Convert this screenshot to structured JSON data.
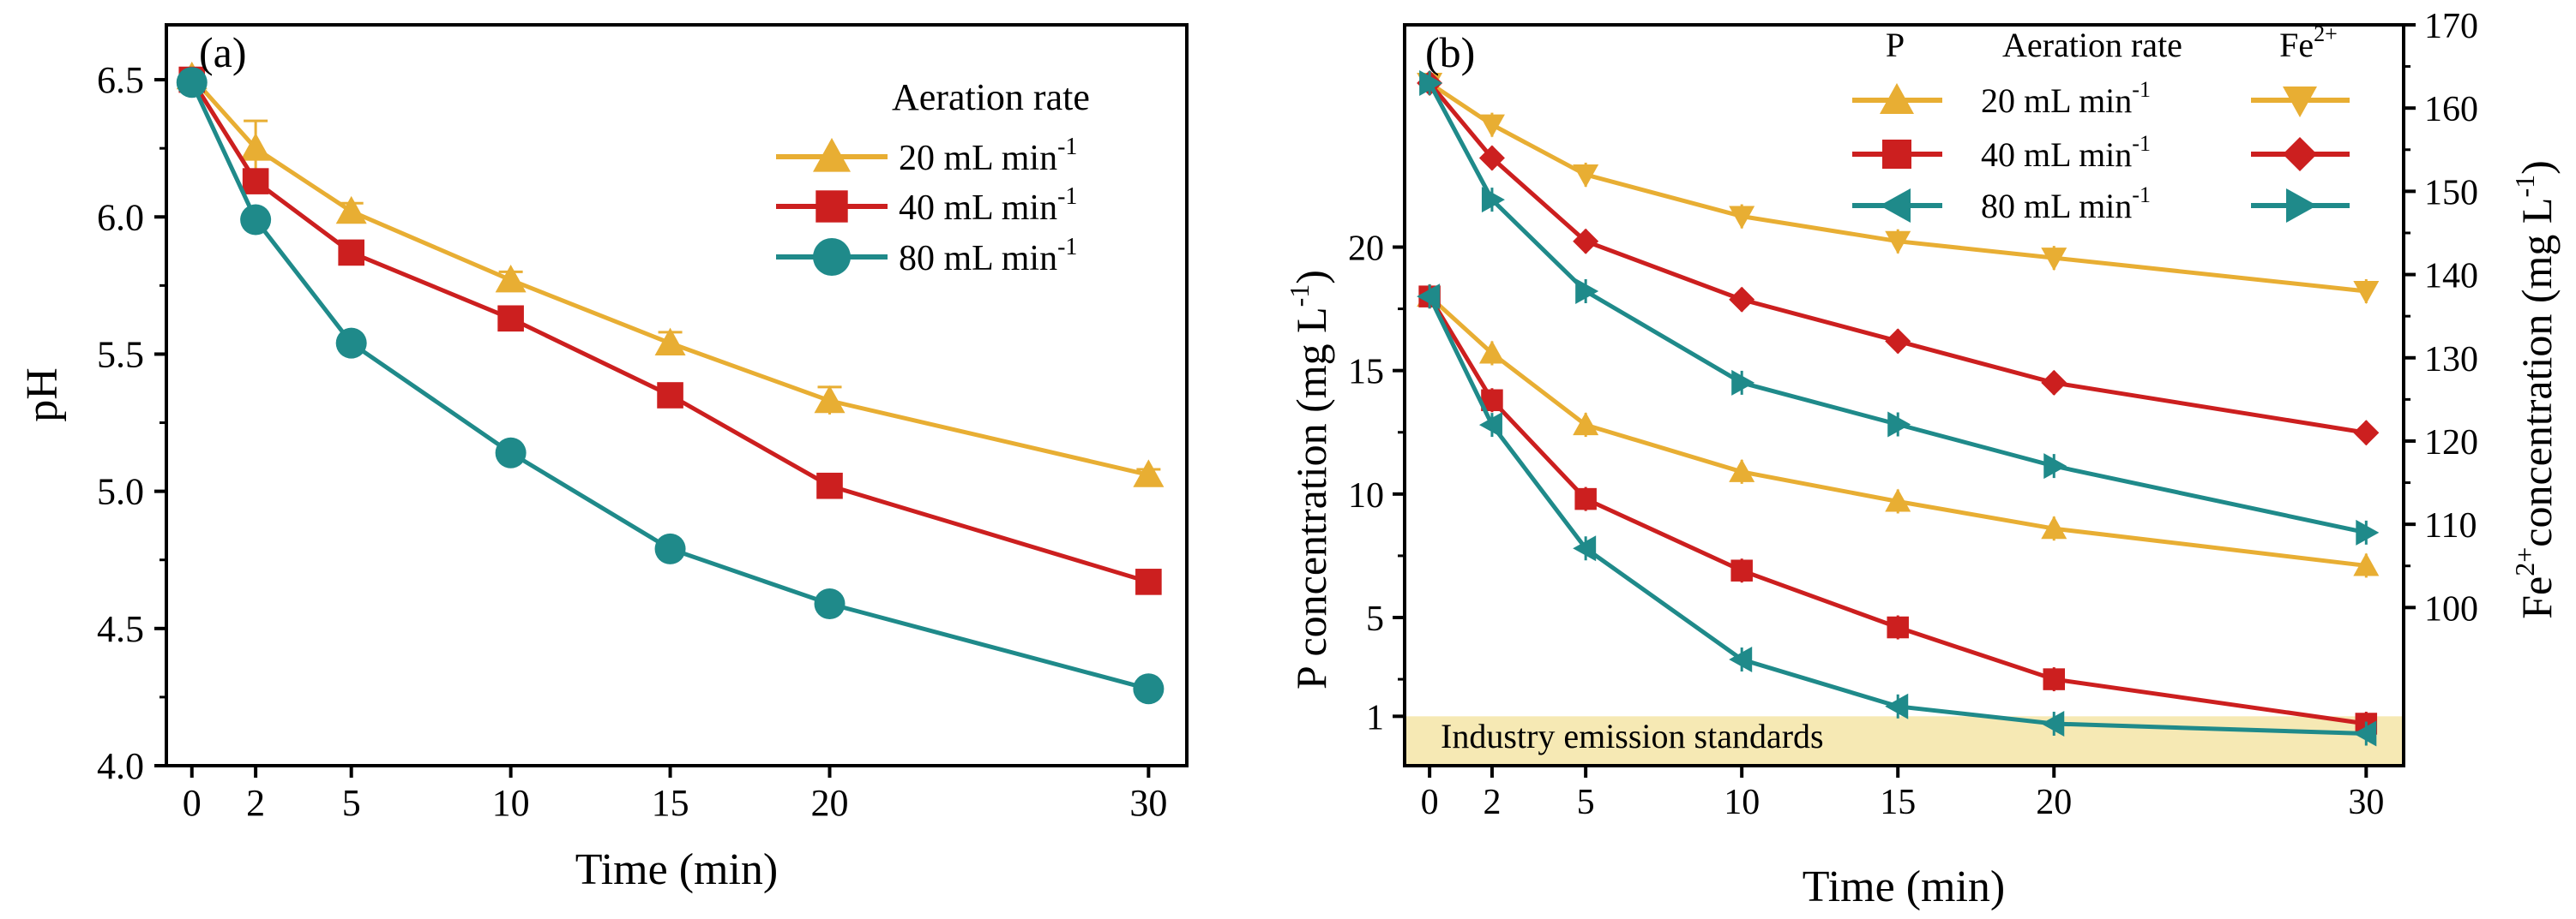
{
  "colors": {
    "yellow": "#E8AE33",
    "red": "#CC1F1F",
    "teal": "#1F8A8A",
    "band": "#F6E9B4",
    "axis": "#000000"
  },
  "chart_data": [
    {
      "panel_label": "(a)",
      "type": "line",
      "xlabel": "Time (min)",
      "ylabel": "pH",
      "x": [
        0,
        2,
        5,
        10,
        15,
        20,
        30
      ],
      "x_ticks": [
        "0",
        "2",
        "5",
        "10",
        "15",
        "20",
        "30"
      ],
      "xlim": [
        -0.8,
        31.2
      ],
      "ylim": [
        4.0,
        6.7
      ],
      "y_ticks": [
        "4.0",
        "4.5",
        "5.0",
        "5.5",
        "6.0",
        "6.5"
      ],
      "y_tick_values": [
        4.0,
        4.5,
        5.0,
        5.5,
        6.0,
        6.5
      ],
      "legend_title": "Aeration rate",
      "legend_position": "top-right",
      "series": [
        {
          "name": "20 mL min",
          "unit_sup": "-1",
          "marker": "triangle-up",
          "color": "#E8AE33",
          "values": [
            6.51,
            6.25,
            6.02,
            5.77,
            5.54,
            5.33,
            5.06
          ],
          "errors": [
            0.03,
            0.1,
            0.03,
            0.03,
            0.04,
            0.05,
            0.02
          ]
        },
        {
          "name": "40 mL min",
          "unit_sup": "-1",
          "marker": "square",
          "color": "#CC1F1F",
          "values": [
            6.5,
            6.13,
            5.87,
            5.63,
            5.35,
            5.02,
            4.67
          ],
          "errors": [
            0.03,
            0.04,
            0.02,
            0.02,
            0.02,
            0.02,
            0.02
          ]
        },
        {
          "name": "80 mL min",
          "unit_sup": "-1",
          "marker": "circle",
          "color": "#1F8A8A",
          "values": [
            6.49,
            5.99,
            5.54,
            5.14,
            4.79,
            4.59,
            4.28
          ],
          "errors": [
            0.02,
            0.02,
            0.03,
            0.02,
            0.02,
            0.02,
            0.02
          ]
        }
      ]
    },
    {
      "panel_label": "(b)",
      "type": "line",
      "xlabel": "Time (min)",
      "ylabel": "P concentration (mg L",
      "ylabel_sup": "-1",
      "ylabel_close": ")",
      "y2label_prefix": "Fe",
      "y2label_sup": "2+",
      "y2label_rest": "concentration (mg L",
      "y2label_sup2": "-1",
      "y2label_close": ")",
      "x": [
        0,
        2,
        5,
        10,
        15,
        20,
        30
      ],
      "x_ticks": [
        "0",
        "2",
        "5",
        "10",
        "15",
        "20",
        "30"
      ],
      "xlim": [
        -0.8,
        31.2
      ],
      "ylim": [
        -1,
        29
      ],
      "y_ticks": [
        "1",
        "5",
        "10",
        "15",
        "20"
      ],
      "y_tick_values": [
        1,
        5,
        10,
        15,
        20
      ],
      "y2lim": [
        81,
        170
      ],
      "y2_ticks": [
        "100",
        "110",
        "120",
        "130",
        "140",
        "150",
        "160",
        "170"
      ],
      "y2_tick_values": [
        100,
        110,
        120,
        130,
        140,
        150,
        160,
        170
      ],
      "band": {
        "label": "Industry emission standards",
        "from": -1,
        "to": 1
      },
      "legend_header_p": "P",
      "legend_header_rate": "Aeration rate",
      "legend_header_fe": "Fe",
      "legend_header_fe_sup": "2+",
      "legend_position": "top-right",
      "legend_rows": [
        {
          "label": "20 mL min",
          "unit_sup": "-1"
        },
        {
          "label": "40 mL min",
          "unit_sup": "-1"
        },
        {
          "label": "80 mL min",
          "unit_sup": "-1"
        }
      ],
      "series": [
        {
          "name": "P 20 mL min-1",
          "axis": "left",
          "marker": "triangle-up",
          "color": "#E8AE33",
          "values": [
            18.0,
            15.7,
            12.8,
            10.9,
            9.7,
            8.6,
            7.1
          ]
        },
        {
          "name": "P 40 mL min-1",
          "axis": "left",
          "marker": "square",
          "color": "#CC1F1F",
          "values": [
            18.0,
            13.8,
            9.8,
            6.9,
            4.6,
            2.5,
            0.7
          ]
        },
        {
          "name": "P 80 mL min-1",
          "axis": "left",
          "marker": "triangle-left",
          "color": "#1F8A8A",
          "values": [
            18.0,
            12.8,
            7.8,
            3.3,
            1.4,
            0.7,
            0.3
          ]
        },
        {
          "name": "Fe2+ 20 mL min-1",
          "axis": "right",
          "marker": "triangle-down",
          "color": "#E8AE33",
          "values": [
            163,
            158,
            152,
            147,
            144,
            142,
            138
          ]
        },
        {
          "name": "Fe2+ 40 mL min-1",
          "axis": "right",
          "marker": "diamond",
          "color": "#CC1F1F",
          "values": [
            163,
            154,
            144,
            137,
            132,
            127,
            121
          ]
        },
        {
          "name": "Fe2+ 80 mL min-1",
          "axis": "right",
          "marker": "triangle-right",
          "color": "#1F8A8A",
          "values": [
            163,
            149,
            138,
            127,
            122,
            117,
            109
          ]
        }
      ]
    }
  ]
}
